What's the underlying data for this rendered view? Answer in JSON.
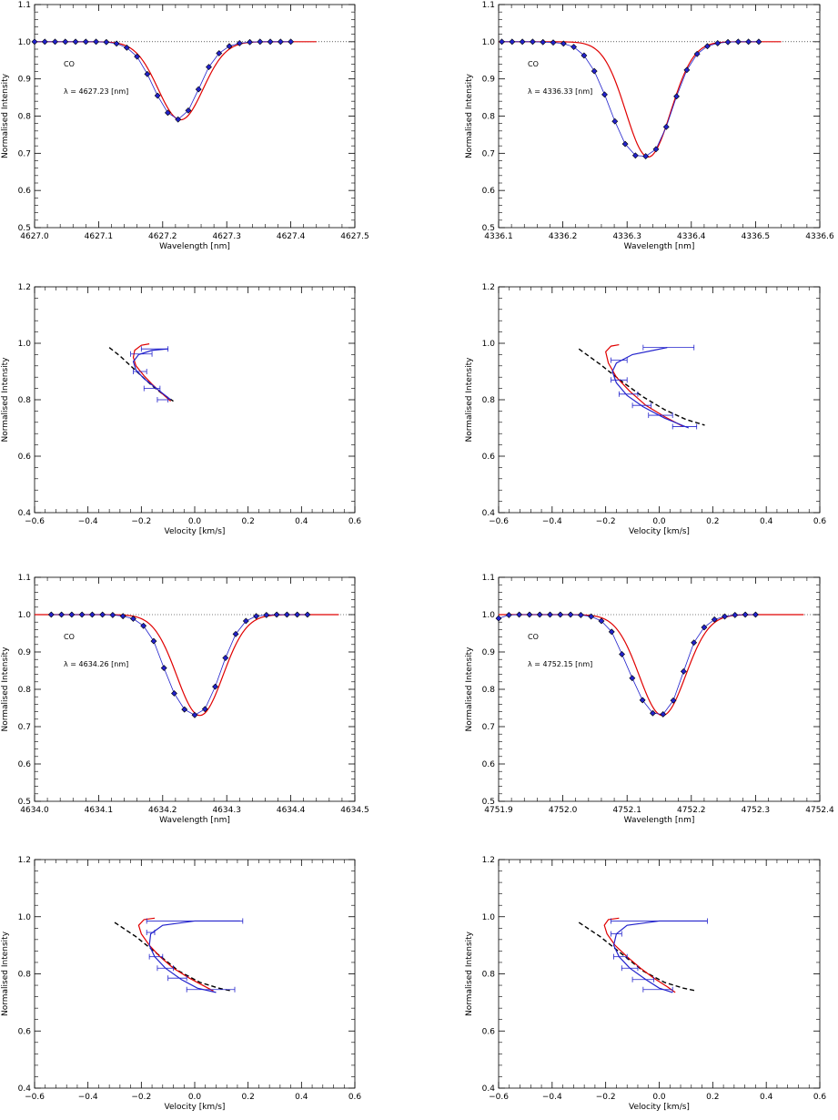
{
  "chart_data": [
    {
      "type": "line",
      "panel": "profile",
      "xlabel": "Wavelength [nm]",
      "ylabel": "Normalised Intensity",
      "xlim": [
        4627.0,
        4627.5
      ],
      "ylim": [
        0.5,
        1.1
      ],
      "xticks": [
        4627.0,
        4627.1,
        4627.2,
        4627.3,
        4627.4,
        4627.5
      ],
      "xtick_labels": [
        "4627.0",
        "4627.1",
        "4627.2",
        "4627.3",
        "4627.4",
        "4627.5"
      ],
      "yticks": [
        0.5,
        0.6,
        0.7,
        0.8,
        0.9,
        1.0,
        1.1
      ],
      "ytick_labels": [
        "0.5",
        "0.6",
        "0.7",
        "0.8",
        "0.9",
        "1.0",
        "1.1"
      ],
      "species": "CO",
      "wavelength_label": "λ = 4627.23 [nm]",
      "continuum": 1.0,
      "line_center": 4627.228,
      "depth": 0.21,
      "sigma": 0.035,
      "fit_range": [
        4627.0,
        4627.44
      ],
      "points": {
        "x": [
          4627.0,
          4627.016,
          4627.032,
          4627.048,
          4627.064,
          4627.08,
          4627.096,
          4627.112,
          4627.128,
          4627.144,
          4627.16,
          4627.176,
          4627.192,
          4627.208,
          4627.224,
          4627.24,
          4627.256,
          4627.272,
          4627.288,
          4627.304,
          4627.32,
          4627.336,
          4627.352,
          4627.368,
          4627.384,
          4627.4
        ],
        "y": [
          1.0,
          1.0,
          1.0,
          1.0,
          1.0,
          1.0,
          1.0,
          0.999,
          0.995,
          0.984,
          0.96,
          0.913,
          0.855,
          0.809,
          0.791,
          0.815,
          0.872,
          0.932,
          0.969,
          0.988,
          0.996,
          0.999,
          1.0,
          1.0,
          1.0,
          1.0
        ]
      }
    },
    {
      "type": "line",
      "panel": "profile",
      "xlabel": "Wavelength [nm]",
      "ylabel": "Normalised Intensity",
      "xlim": [
        4336.1,
        4336.6
      ],
      "ylim": [
        0.5,
        1.1
      ],
      "xticks": [
        4336.1,
        4336.2,
        4336.3,
        4336.4,
        4336.5,
        4336.6
      ],
      "xtick_labels": [
        "4336.1",
        "4336.2",
        "4336.3",
        "4336.4",
        "4336.5",
        "4336.6"
      ],
      "yticks": [
        0.5,
        0.6,
        0.7,
        0.8,
        0.9,
        1.0,
        1.1
      ],
      "ytick_labels": [
        "0.5",
        "0.6",
        "0.7",
        "0.8",
        "0.9",
        "1.0",
        "1.1"
      ],
      "species": "CO",
      "wavelength_label": "λ = 4336.33 [nm]",
      "continuum": 1.0,
      "line_center": 4336.333,
      "depth": 0.31,
      "sigma": 0.035,
      "fit_range": [
        4336.1,
        4336.54
      ],
      "points": {
        "x": [
          4336.105,
          4336.121,
          4336.137,
          4336.153,
          4336.169,
          4336.185,
          4336.201,
          4336.217,
          4336.233,
          4336.249,
          4336.265,
          4336.281,
          4336.297,
          4336.313,
          4336.329,
          4336.345,
          4336.361,
          4336.377,
          4336.393,
          4336.409,
          4336.425,
          4336.441,
          4336.457,
          4336.473,
          4336.489,
          4336.505
        ],
        "y": [
          1.0,
          1.0,
          1.0,
          1.0,
          0.999,
          0.998,
          0.995,
          0.986,
          0.963,
          0.921,
          0.858,
          0.786,
          0.725,
          0.694,
          0.692,
          0.711,
          0.771,
          0.853,
          0.924,
          0.967,
          0.988,
          0.996,
          0.999,
          1.0,
          1.0,
          1.0
        ]
      }
    },
    {
      "type": "line",
      "panel": "bisector",
      "xlabel": "Velocity [km/s]",
      "ylabel": "Normalised Intensity",
      "xlim": [
        -0.6,
        0.6
      ],
      "ylim": [
        0.4,
        1.2
      ],
      "xticks": [
        -0.6,
        -0.4,
        -0.2,
        0.0,
        0.2,
        0.4,
        0.6
      ],
      "xtick_labels": [
        "−0.6",
        "−0.4",
        "−0.2",
        "0.0",
        "0.2",
        "0.4",
        "0.6"
      ],
      "yticks": [
        0.4,
        0.6,
        0.8,
        1.0,
        1.2
      ],
      "ytick_labels": [
        "0.4",
        "0.6",
        "0.8",
        "1.0",
        "1.2"
      ],
      "series": [
        {
          "style": "dashed",
          "color": "#000000",
          "x": [
            -0.32,
            -0.28,
            -0.24,
            -0.2,
            -0.16,
            -0.12,
            -0.08
          ],
          "y": [
            0.985,
            0.955,
            0.92,
            0.885,
            0.85,
            0.82,
            0.795
          ]
        },
        {
          "style": "solid",
          "color": "#e00000",
          "x": [
            -0.17,
            -0.2,
            -0.225,
            -0.23,
            -0.22,
            -0.19,
            -0.16,
            -0.12,
            -0.09
          ],
          "y": [
            0.998,
            0.993,
            0.975,
            0.95,
            0.92,
            0.885,
            0.855,
            0.82,
            0.795
          ]
        },
        {
          "style": "solid",
          "color": "#2222cc",
          "x": [
            -0.1,
            -0.16,
            -0.21,
            -0.23,
            -0.22,
            -0.19,
            -0.15,
            -0.11,
            -0.09
          ],
          "y": [
            0.98,
            0.975,
            0.96,
            0.935,
            0.905,
            0.875,
            0.845,
            0.815,
            0.8
          ]
        }
      ],
      "error_bars": {
        "color": "#2222cc",
        "y": [
          0.98,
          0.962,
          0.9,
          0.84,
          0.8
        ],
        "x_low": [
          -0.2,
          -0.24,
          -0.23,
          -0.19,
          -0.14
        ],
        "x_high": [
          -0.1,
          -0.16,
          -0.18,
          -0.13,
          -0.1
        ]
      }
    },
    {
      "type": "line",
      "panel": "bisector",
      "xlabel": "Velocity [km/s]",
      "ylabel": "Normalised Intensity",
      "xlim": [
        -0.6,
        0.6
      ],
      "ylim": [
        0.4,
        1.2
      ],
      "xticks": [
        -0.6,
        -0.4,
        -0.2,
        0.0,
        0.2,
        0.4,
        0.6
      ],
      "xtick_labels": [
        "−0.6",
        "−0.4",
        "−0.2",
        "0.0",
        "0.2",
        "0.4",
        "0.6"
      ],
      "yticks": [
        0.4,
        0.6,
        0.8,
        1.0,
        1.2
      ],
      "ytick_labels": [
        "0.4",
        "0.6",
        "0.8",
        "1.0",
        "1.2"
      ],
      "series": [
        {
          "style": "dashed",
          "color": "#000000",
          "x": [
            -0.3,
            -0.22,
            -0.14,
            -0.06,
            0.02,
            0.1,
            0.17
          ],
          "y": [
            0.98,
            0.925,
            0.865,
            0.81,
            0.765,
            0.73,
            0.71
          ]
        },
        {
          "style": "solid",
          "color": "#e00000",
          "x": [
            -0.15,
            -0.18,
            -0.2,
            -0.19,
            -0.16,
            -0.11,
            -0.05,
            0.02,
            0.09
          ],
          "y": [
            0.995,
            0.99,
            0.97,
            0.93,
            0.88,
            0.83,
            0.78,
            0.74,
            0.705
          ]
        },
        {
          "style": "solid",
          "color": "#2222cc",
          "x": [
            0.03,
            -0.1,
            -0.16,
            -0.175,
            -0.16,
            -0.12,
            -0.06,
            0.02,
            0.11
          ],
          "y": [
            0.985,
            0.96,
            0.93,
            0.9,
            0.86,
            0.815,
            0.775,
            0.735,
            0.7
          ]
        }
      ],
      "error_bars": {
        "color": "#2222cc",
        "y": [
          0.985,
          0.94,
          0.87,
          0.82,
          0.78,
          0.745,
          0.705
        ],
        "x_low": [
          -0.06,
          -0.18,
          -0.18,
          -0.15,
          -0.1,
          -0.04,
          0.05
        ],
        "x_high": [
          0.13,
          -0.12,
          -0.12,
          -0.08,
          -0.03,
          0.05,
          0.14
        ]
      }
    },
    {
      "type": "line",
      "panel": "profile",
      "xlabel": "Wavelength [nm]",
      "ylabel": "Normalised Intensity",
      "xlim": [
        4634.0,
        4634.5
      ],
      "ylim": [
        0.5,
        1.1
      ],
      "xticks": [
        4634.0,
        4634.1,
        4634.2,
        4634.3,
        4634.4,
        4634.5
      ],
      "xtick_labels": [
        "4634.0",
        "4634.1",
        "4634.2",
        "4634.3",
        "4634.4",
        "4634.5"
      ],
      "yticks": [
        0.5,
        0.6,
        0.7,
        0.8,
        0.9,
        1.0,
        1.1
      ],
      "ytick_labels": [
        "0.5",
        "0.6",
        "0.7",
        "0.8",
        "0.9",
        "1.0",
        "1.1"
      ],
      "species": "CO",
      "wavelength_label": "λ = 4634.26 [nm]",
      "continuum": 1.0,
      "line_center": 4634.258,
      "depth": 0.27,
      "sigma": 0.036,
      "fit_range": [
        4634.0,
        4634.475
      ],
      "points": {
        "x": [
          4634.026,
          4634.042,
          4634.058,
          4634.074,
          4634.09,
          4634.106,
          4634.122,
          4634.138,
          4634.154,
          4634.17,
          4634.186,
          4634.202,
          4634.218,
          4634.234,
          4634.25,
          4634.266,
          4634.282,
          4634.298,
          4634.314,
          4634.33,
          4634.346,
          4634.362,
          4634.378,
          4634.394,
          4634.41,
          4634.426
        ],
        "y": [
          1.0,
          1.0,
          1.0,
          1.0,
          1.0,
          1.0,
          0.999,
          0.996,
          0.989,
          0.97,
          0.929,
          0.857,
          0.789,
          0.746,
          0.731,
          0.747,
          0.807,
          0.884,
          0.948,
          0.983,
          0.996,
          0.999,
          1.0,
          1.0,
          1.0,
          1.0
        ]
      }
    },
    {
      "type": "line",
      "panel": "profile",
      "xlabel": "Wavelength [nm]",
      "ylabel": "Normalised Intensity",
      "xlim": [
        4751.9,
        4752.4
      ],
      "ylim": [
        0.5,
        1.1
      ],
      "xticks": [
        4751.9,
        4752.0,
        4752.1,
        4752.2,
        4752.3,
        4752.4
      ],
      "xtick_labels": [
        "4751.9",
        "4752.0",
        "4752.1",
        "4752.2",
        "4752.3",
        "4752.4"
      ],
      "yticks": [
        0.5,
        0.6,
        0.7,
        0.8,
        0.9,
        1.0,
        1.1
      ],
      "ytick_labels": [
        "0.5",
        "0.6",
        "0.7",
        "0.8",
        "0.9",
        "1.0",
        "1.1"
      ],
      "species": "CO",
      "wavelength_label": "λ = 4752.15 [nm]",
      "continuum": 1.0,
      "line_center": 4752.155,
      "depth": 0.27,
      "sigma": 0.036,
      "fit_range": [
        4751.9,
        4752.375
      ],
      "points": {
        "x": [
          4751.9,
          4751.916,
          4751.932,
          4751.948,
          4751.964,
          4751.98,
          4751.996,
          4752.012,
          4752.028,
          4752.044,
          4752.06,
          4752.076,
          4752.092,
          4752.108,
          4752.124,
          4752.14,
          4752.156,
          4752.172,
          4752.188,
          4752.204,
          4752.22,
          4752.236,
          4752.252,
          4752.268,
          4752.284,
          4752.3
        ],
        "y": [
          0.99,
          0.999,
          1.0,
          1.0,
          1.0,
          1.0,
          1.0,
          1.0,
          0.999,
          0.995,
          0.983,
          0.954,
          0.894,
          0.83,
          0.771,
          0.736,
          0.733,
          0.77,
          0.848,
          0.925,
          0.966,
          0.987,
          0.995,
          0.999,
          1.0,
          1.0
        ]
      }
    },
    {
      "type": "line",
      "panel": "bisector",
      "xlabel": "Velocity [km/s]",
      "ylabel": "Normalised Intensity",
      "xlim": [
        -0.6,
        0.6
      ],
      "ylim": [
        0.4,
        1.2
      ],
      "xticks": [
        -0.6,
        -0.4,
        -0.2,
        0.0,
        0.2,
        0.4,
        0.6
      ],
      "xtick_labels": [
        "−0.6",
        "−0.4",
        "−0.2",
        "0.0",
        "0.2",
        "0.4",
        "0.6"
      ],
      "yticks": [
        0.4,
        0.6,
        0.8,
        1.0,
        1.2
      ],
      "ytick_labels": [
        "0.4",
        "0.6",
        "0.8",
        "1.0",
        "1.2"
      ],
      "series": [
        {
          "style": "dashed",
          "color": "#000000",
          "x": [
            -0.3,
            -0.22,
            -0.14,
            -0.06,
            0.02,
            0.09,
            0.14
          ],
          "y": [
            0.98,
            0.93,
            0.87,
            0.81,
            0.77,
            0.75,
            0.74
          ]
        },
        {
          "style": "solid",
          "color": "#e00000",
          "x": [
            -0.15,
            -0.19,
            -0.21,
            -0.2,
            -0.17,
            -0.13,
            -0.08,
            -0.02,
            0.03,
            0.07
          ],
          "y": [
            0.995,
            0.99,
            0.97,
            0.94,
            0.9,
            0.86,
            0.82,
            0.785,
            0.76,
            0.74
          ]
        },
        {
          "style": "solid",
          "color": "#2222cc",
          "x": [
            0.17,
            0.0,
            -0.12,
            -0.165,
            -0.17,
            -0.15,
            -0.11,
            -0.05,
            0.01,
            0.08
          ],
          "y": [
            0.985,
            0.985,
            0.97,
            0.94,
            0.9,
            0.86,
            0.82,
            0.78,
            0.75,
            0.735
          ]
        }
      ],
      "error_bars": {
        "color": "#2222cc",
        "y": [
          0.985,
          0.945,
          0.86,
          0.82,
          0.785,
          0.745
        ],
        "x_low": [
          -0.18,
          -0.18,
          -0.17,
          -0.14,
          -0.1,
          -0.03
        ],
        "x_high": [
          0.18,
          -0.15,
          -0.12,
          -0.08,
          -0.03,
          0.15
        ]
      }
    },
    {
      "type": "line",
      "panel": "bisector",
      "xlabel": "Velocity [km/s]",
      "ylabel": "Normalised Intensity",
      "xlim": [
        -0.6,
        0.6
      ],
      "ylim": [
        0.4,
        1.2
      ],
      "xticks": [
        -0.6,
        -0.4,
        -0.2,
        0.0,
        0.2,
        0.4,
        0.6
      ],
      "xtick_labels": [
        "−0.6",
        "−0.4",
        "−0.2",
        "0.0",
        "0.2",
        "0.4",
        "0.6"
      ],
      "yticks": [
        0.4,
        0.6,
        0.8,
        1.0,
        1.2
      ],
      "ytick_labels": [
        "0.4",
        "0.6",
        "0.8",
        "1.0",
        "1.2"
      ],
      "series": [
        {
          "style": "dashed",
          "color": "#000000",
          "x": [
            -0.3,
            -0.22,
            -0.14,
            -0.06,
            0.02,
            0.09,
            0.14
          ],
          "y": [
            0.98,
            0.93,
            0.87,
            0.81,
            0.77,
            0.75,
            0.74
          ]
        },
        {
          "style": "solid",
          "color": "#e00000",
          "x": [
            -0.15,
            -0.19,
            -0.205,
            -0.195,
            -0.165,
            -0.12,
            -0.07,
            -0.02,
            0.03,
            0.06
          ],
          "y": [
            0.995,
            0.99,
            0.97,
            0.94,
            0.9,
            0.86,
            0.82,
            0.785,
            0.755,
            0.735
          ]
        },
        {
          "style": "solid",
          "color": "#2222cc",
          "x": [
            0.18,
            0.0,
            -0.12,
            -0.16,
            -0.17,
            -0.15,
            -0.11,
            -0.05,
            0.0,
            0.05
          ],
          "y": [
            0.985,
            0.985,
            0.97,
            0.94,
            0.9,
            0.86,
            0.82,
            0.78,
            0.75,
            0.735
          ]
        }
      ],
      "error_bars": {
        "color": "#2222cc",
        "y": [
          0.985,
          0.94,
          0.86,
          0.82,
          0.78,
          0.745
        ],
        "x_low": [
          -0.18,
          -0.18,
          -0.17,
          -0.14,
          -0.1,
          -0.06
        ],
        "x_high": [
          0.18,
          -0.14,
          -0.12,
          -0.08,
          -0.02,
          0.05
        ]
      }
    }
  ]
}
